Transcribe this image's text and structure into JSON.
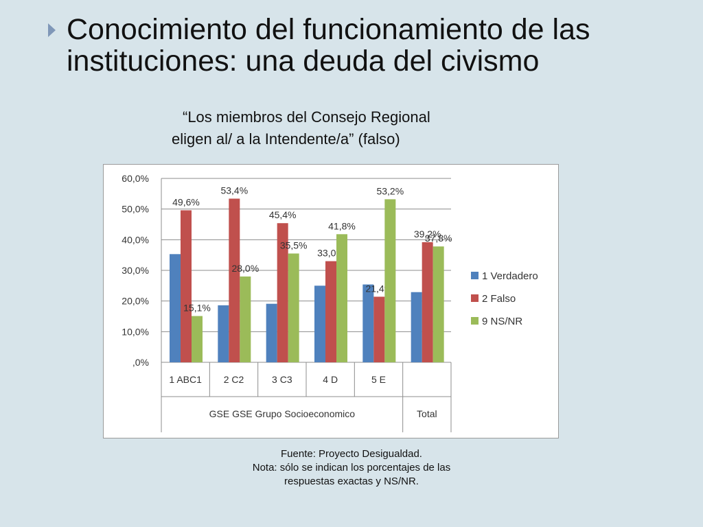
{
  "slide": {
    "title_line1": "Conocimiento del funcionamiento de las",
    "title_line2": "instituciones: una deuda del civismo",
    "subtitle_line1": "“Los miembros del Consejo Regional",
    "subtitle_line2": "eligen al/ a la Intendente/a” (falso)",
    "source_line1": "Fuente: Proyecto Desigualdad.",
    "source_line2": "Nota: sólo se indican los porcentajes de las",
    "source_line3": "respuestas exactas y NS/NR."
  },
  "chart_data": {
    "type": "bar",
    "categories": [
      "1 ABC1",
      "2 C2",
      "3 C3",
      "4 D",
      "5 E",
      "Total"
    ],
    "group_labels": [
      "GSE GSE Grupo Socioeconomico",
      "Total"
    ],
    "ylim": [
      0,
      60
    ],
    "yticks": [
      ",0%",
      "10,0%",
      "20,0%",
      "30,0%",
      "40,0%",
      "50,0%",
      "60,0%"
    ],
    "grid": true,
    "legend_position": "right",
    "series": [
      {
        "name": "1 Verdadero",
        "color": "#4f81bd",
        "values": [
          35.3,
          18.6,
          19.1,
          25.0,
          25.4,
          22.9
        ],
        "labels": [
          "",
          "",
          "",
          "",
          "",
          ""
        ]
      },
      {
        "name": "2 Falso",
        "color": "#c0504d",
        "values": [
          49.6,
          53.4,
          45.4,
          33.0,
          21.4,
          39.2
        ],
        "labels": [
          "49,6%",
          "53,4%",
          "45,4%",
          "33,0%",
          "21,4%",
          "39,2%"
        ]
      },
      {
        "name": "9 NS/NR",
        "color": "#9bbb59",
        "values": [
          15.1,
          28.0,
          35.5,
          41.8,
          53.2,
          37.8
        ],
        "labels": [
          "15,1%",
          "28,0%",
          "35,5%",
          "41,8%",
          "53,2%",
          "37,8%"
        ]
      }
    ]
  }
}
